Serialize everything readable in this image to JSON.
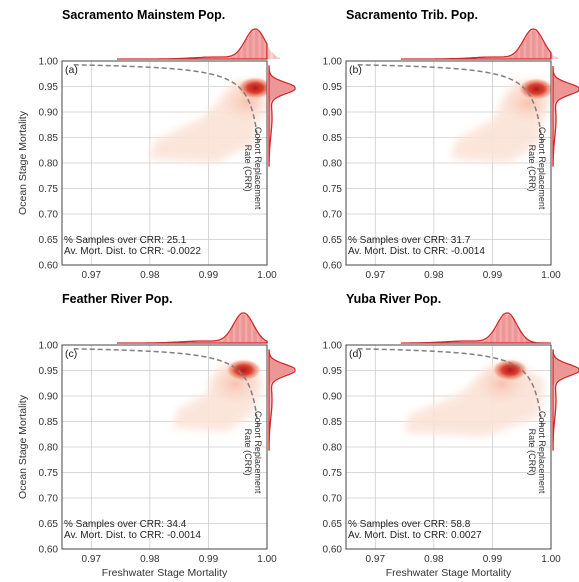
{
  "figure": {
    "xlabel": "Freshwater Stage Mortality",
    "ylabel": "Ocean Stage Mortality",
    "crr_label_line1": "Cohort Replacement",
    "crr_label_line2": "Rate (CRR)",
    "samples_prefix": "% Samples over CRR: ",
    "distance_prefix": "Av. Mort. Dist. to CRR: "
  },
  "colors": {
    "density_dark": "#b01818",
    "density_light": "#fbe3d8",
    "marginal": "#d62728",
    "crr_curve": "#808080",
    "grid": "#cccccc"
  },
  "chart_data": [
    {
      "type": "heatmap",
      "panel": "(a)",
      "title": "Sacramento Mainstem Pop.",
      "xlabel": "",
      "ylabel": "Ocean Stage Mortality",
      "xlim": [
        0.965,
        1.0
      ],
      "ylim": [
        0.6,
        1.0
      ],
      "xticks": [
        "0.97",
        "0.98",
        "0.99",
        "1.00"
      ],
      "yticks": [
        "0.60",
        "0.65",
        "0.70",
        "0.75",
        "0.80",
        "0.85",
        "0.90",
        "0.95",
        "1.00"
      ],
      "samples_over_crr": "25.1",
      "mean_distance_to_crr": "-0.0022",
      "density_mode": {
        "x": 0.998,
        "y": 0.947
      },
      "density_extent": {
        "x": [
          0.98,
          0.999
        ],
        "y": [
          0.8,
          0.965
        ]
      },
      "x_marginal_peak": 0.998,
      "y_marginal_peak": 0.947
    },
    {
      "type": "heatmap",
      "panel": "(b)",
      "title": "Sacramento Trib. Pop.",
      "xlabel": "",
      "ylabel": "",
      "xlim": [
        0.965,
        1.0
      ],
      "ylim": [
        0.6,
        1.0
      ],
      "xticks": [
        "0.97",
        "0.98",
        "0.99",
        "1.00"
      ],
      "yticks": [
        "0.60",
        "0.65",
        "0.70",
        "0.75",
        "0.80",
        "0.85",
        "0.90",
        "0.95",
        "1.00"
      ],
      "samples_over_crr": "31.7",
      "mean_distance_to_crr": "-0.0014",
      "density_mode": {
        "x": 0.9975,
        "y": 0.945
      },
      "density_extent": {
        "x": [
          0.983,
          0.999
        ],
        "y": [
          0.8,
          0.965
        ]
      },
      "x_marginal_peak": 0.997,
      "y_marginal_peak": 0.945
    },
    {
      "type": "heatmap",
      "panel": "(c)",
      "title": "Feather River Pop.",
      "xlabel": "Freshwater Stage Mortality",
      "ylabel": "Ocean Stage Mortality",
      "xlim": [
        0.965,
        1.0
      ],
      "ylim": [
        0.6,
        1.0
      ],
      "xticks": [
        "0.97",
        "0.98",
        "0.99",
        "1.00"
      ],
      "yticks": [
        "0.60",
        "0.65",
        "0.70",
        "0.75",
        "0.80",
        "0.85",
        "0.90",
        "0.95",
        "1.00"
      ],
      "samples_over_crr": "34.4",
      "mean_distance_to_crr": "-0.0014",
      "density_mode": {
        "x": 0.996,
        "y": 0.951
      },
      "density_extent": {
        "x": [
          0.984,
          0.999
        ],
        "y": [
          0.83,
          0.965
        ]
      },
      "x_marginal_peak": 0.996,
      "y_marginal_peak": 0.951
    },
    {
      "type": "heatmap",
      "panel": "(d)",
      "title": "Yuba River Pop.",
      "xlabel": "Freshwater Stage Mortality",
      "ylabel": "",
      "xlim": [
        0.965,
        1.0
      ],
      "ylim": [
        0.6,
        1.0
      ],
      "xticks": [
        "0.97",
        "0.98",
        "0.99",
        "1.00"
      ],
      "yticks": [
        "0.60",
        "0.65",
        "0.70",
        "0.75",
        "0.80",
        "0.85",
        "0.90",
        "0.95",
        "1.00"
      ],
      "samples_over_crr": "58.8",
      "mean_distance_to_crr": "0.0027",
      "density_mode": {
        "x": 0.993,
        "y": 0.951
      },
      "density_extent": {
        "x": [
          0.975,
          0.999
        ],
        "y": [
          0.82,
          0.965
        ]
      },
      "x_marginal_peak": 0.9925,
      "y_marginal_peak": 0.951
    }
  ]
}
